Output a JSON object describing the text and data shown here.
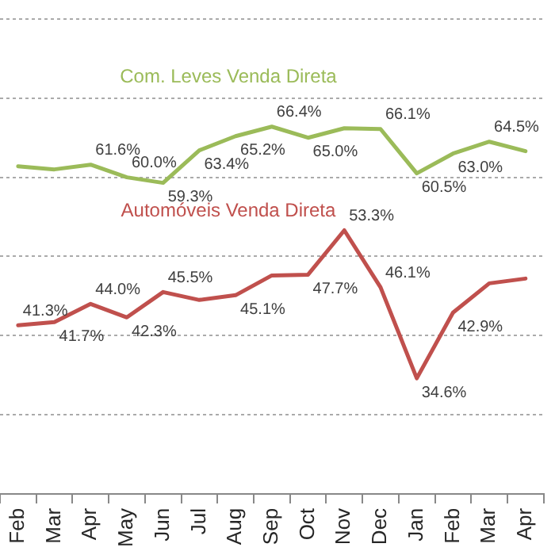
{
  "chart_data": {
    "type": "line",
    "categories": [
      "Feb",
      "Mar",
      "Apr",
      "May",
      "Jun",
      "Jul",
      "Aug",
      "Sep",
      "Oct",
      "Nov",
      "Dec",
      "Jan",
      "Feb",
      "Mar",
      "Apr"
    ],
    "series": [
      {
        "name": "Com. Leves Venda Direta",
        "color": "#9bbb59",
        "values": [
          61.4,
          61.0,
          61.6,
          60.0,
          59.3,
          63.4,
          65.2,
          66.4,
          65.0,
          66.2,
          66.1,
          60.5,
          63.0,
          64.5,
          63.3
        ],
        "value_labels": [
          null,
          null,
          "61.6%",
          "60.0%",
          "59.3%",
          "63.4%",
          "65.2%",
          "66.4%",
          "65.0%",
          null,
          "66.1%",
          "60.5%",
          "63.0%",
          "64.5%",
          null
        ]
      },
      {
        "name": "Automóveis Venda Direta",
        "color": "#c0504d",
        "values": [
          41.3,
          41.7,
          44.0,
          42.3,
          45.5,
          44.5,
          45.1,
          47.6,
          47.7,
          53.3,
          46.1,
          34.6,
          42.9,
          46.6,
          47.2
        ],
        "value_labels": [
          "41.3%",
          "41.7%",
          "44.0%",
          "42.3%",
          "45.5%",
          null,
          "45.1%",
          null,
          "47.7%",
          "53.3%",
          "46.1%",
          "34.6%",
          "42.9%",
          null,
          null
        ]
      }
    ],
    "ylim": [
      20,
      80
    ],
    "yticks": [
      {
        "value": 20,
        "label": null
      },
      {
        "value": 30,
        "label": null
      },
      {
        "value": 40,
        "label": null
      },
      {
        "value": 50,
        "label": null
      },
      {
        "value": 60,
        "label": null
      },
      {
        "value": 70,
        "label": null
      },
      {
        "value": 80,
        "label": null
      }
    ],
    "tick_labels": "x",
    "grid": "y",
    "legend": false,
    "marker": "none",
    "line_style": "solid"
  }
}
